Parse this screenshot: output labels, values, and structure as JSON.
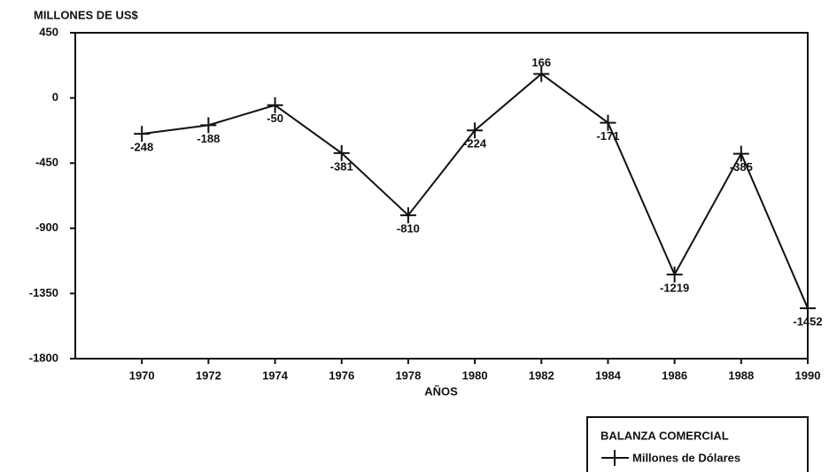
{
  "chart_data": {
    "type": "line",
    "title": "MILLONES DE US$",
    "x_label": "AÑOS",
    "legend_title": "BALANZA COMERCIAL",
    "x": [
      1970,
      1972,
      1974,
      1976,
      1978,
      1980,
      1982,
      1984,
      1986,
      1988,
      1990
    ],
    "series": [
      {
        "name": "Millones de Dólares",
        "color": "#111111",
        "values": [
          -248,
          -188,
          -50,
          -381,
          -810,
          -224,
          166,
          -171,
          -1219,
          -385,
          -1452
        ]
      }
    ],
    "xlim": [
      1968,
      1990
    ],
    "xticks": [
      1970,
      1972,
      1974,
      1976,
      1978,
      1980,
      1982,
      1984,
      1986,
      1988,
      1990
    ],
    "ylim": [
      -1800,
      450
    ],
    "yticks": [
      450,
      0,
      -450,
      -900,
      -1350,
      -1800
    ],
    "grid": false
  }
}
